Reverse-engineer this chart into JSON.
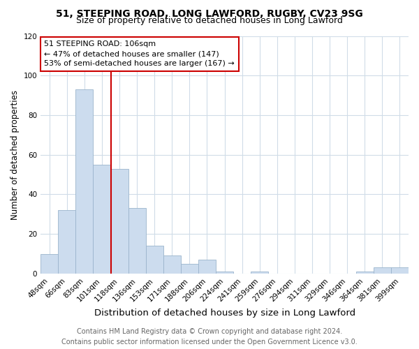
{
  "title1": "51, STEEPING ROAD, LONG LAWFORD, RUGBY, CV23 9SG",
  "title2": "Size of property relative to detached houses in Long Lawford",
  "xlabel": "Distribution of detached houses by size in Long Lawford",
  "ylabel": "Number of detached properties",
  "categories": [
    "48sqm",
    "66sqm",
    "83sqm",
    "101sqm",
    "118sqm",
    "136sqm",
    "153sqm",
    "171sqm",
    "188sqm",
    "206sqm",
    "224sqm",
    "241sqm",
    "259sqm",
    "276sqm",
    "294sqm",
    "311sqm",
    "329sqm",
    "346sqm",
    "364sqm",
    "381sqm",
    "399sqm"
  ],
  "values": [
    10,
    32,
    93,
    55,
    53,
    33,
    14,
    9,
    5,
    7,
    1,
    0,
    1,
    0,
    0,
    0,
    0,
    0,
    1,
    3,
    3
  ],
  "bar_color": "#ccdcee",
  "bar_edge_color": "#9ab4cc",
  "vline_color": "#cc0000",
  "vline_x_index": 3,
  "annotation_text": "51 STEEPING ROAD: 106sqm\n← 47% of detached houses are smaller (147)\n53% of semi-detached houses are larger (167) →",
  "annotation_box_color": "#ffffff",
  "annotation_box_edge": "#cc0000",
  "footer1": "Contains HM Land Registry data © Crown copyright and database right 2024.",
  "footer2": "Contains public sector information licensed under the Open Government Licence v3.0.",
  "ylim": [
    0,
    120
  ],
  "yticks": [
    0,
    20,
    40,
    60,
    80,
    100,
    120
  ],
  "bg_color": "#ffffff",
  "plot_bg_color": "#ffffff",
  "title1_fontsize": 10,
  "title2_fontsize": 9,
  "xlabel_fontsize": 9.5,
  "ylabel_fontsize": 8.5,
  "tick_fontsize": 7.5,
  "footer_fontsize": 7,
  "annotation_fontsize": 8
}
